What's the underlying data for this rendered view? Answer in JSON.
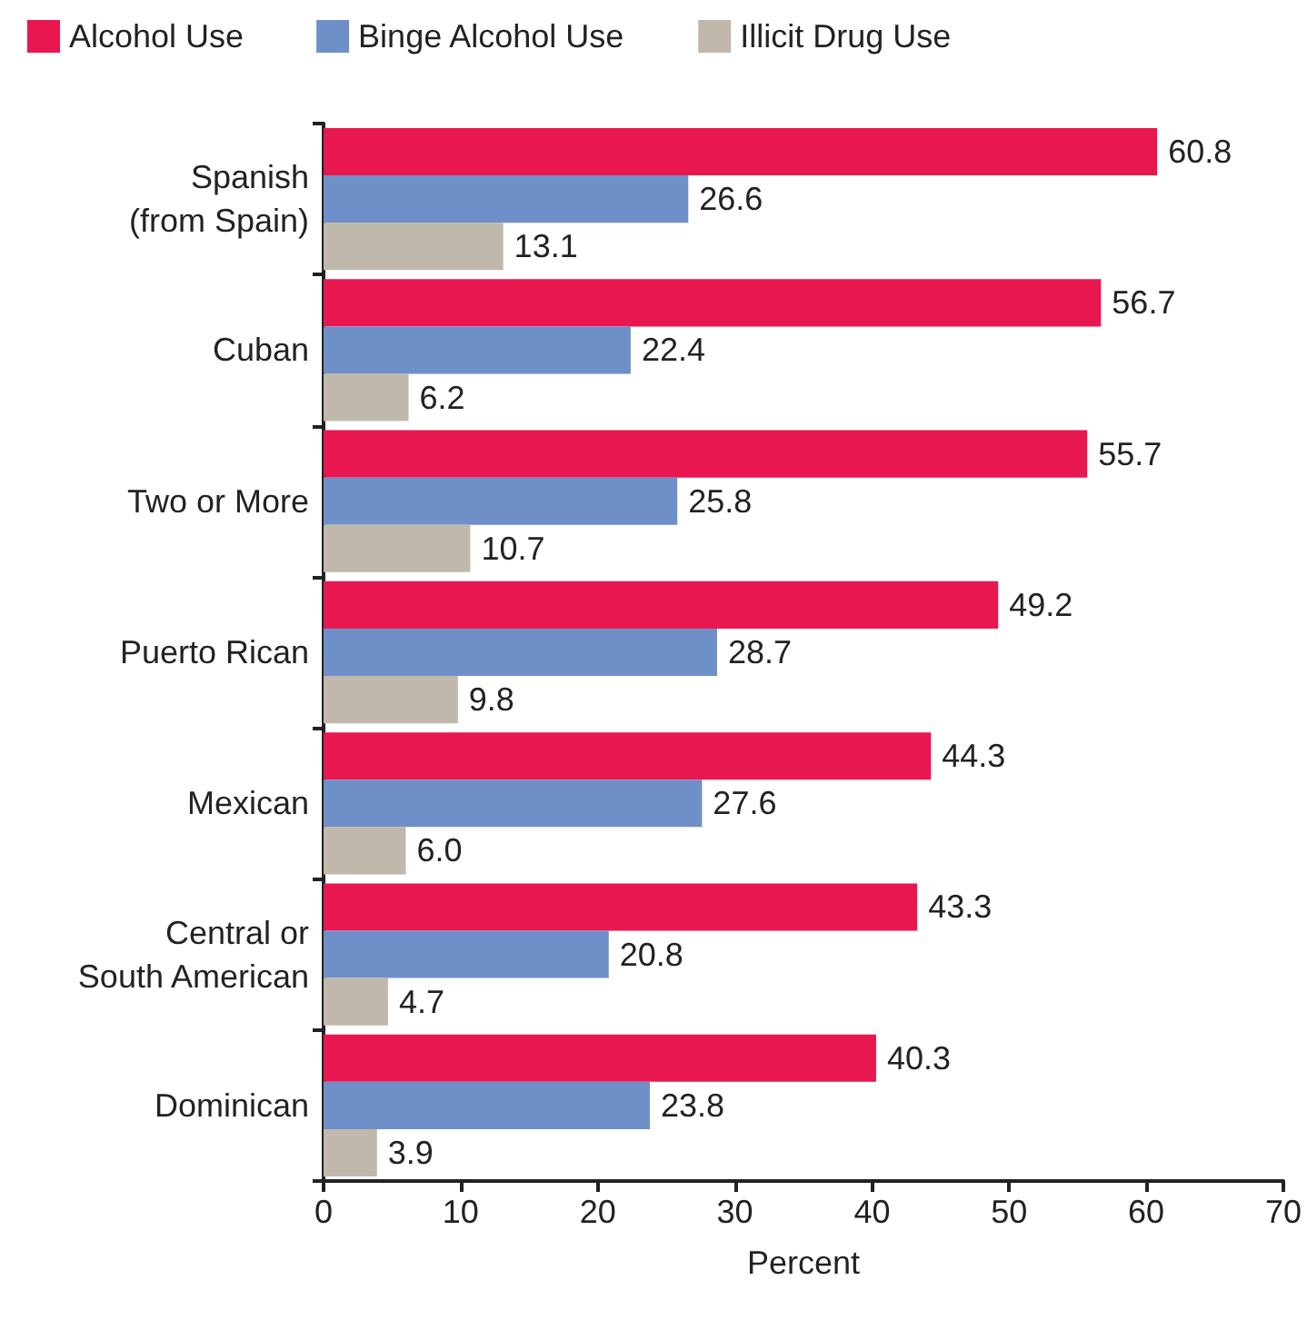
{
  "chart_data": {
    "type": "bar",
    "orientation": "horizontal",
    "xlabel": "Percent",
    "categories": [
      "Spanish (from Spain)",
      "Cuban",
      "Two or More",
      "Puerto Rican",
      "Mexican",
      "Central or South American",
      "Dominican"
    ],
    "series": [
      {
        "name": "Alcohol Use",
        "color": "#e8174f",
        "values": [
          60.8,
          56.7,
          55.7,
          49.2,
          44.3,
          43.3,
          40.3
        ]
      },
      {
        "name": "Binge Alcohol Use",
        "color": "#6f8fc9",
        "values": [
          26.6,
          22.4,
          25.8,
          28.7,
          27.6,
          20.8,
          23.8
        ]
      },
      {
        "name": "Illicit Drug Use",
        "color": "#c0b9ab",
        "values": [
          13.1,
          6.2,
          10.7,
          9.8,
          6.0,
          4.7,
          3.9
        ],
        "value_labels": [
          "13.1",
          "6.2",
          "10.7",
          "9.8",
          "6.0",
          "4.7",
          "3.9"
        ]
      }
    ],
    "xlim": [
      0,
      70
    ],
    "xticks": [
      0,
      10,
      20,
      30,
      40,
      50,
      60,
      70
    ],
    "grid": false,
    "legend": "top",
    "data_labels": true
  }
}
